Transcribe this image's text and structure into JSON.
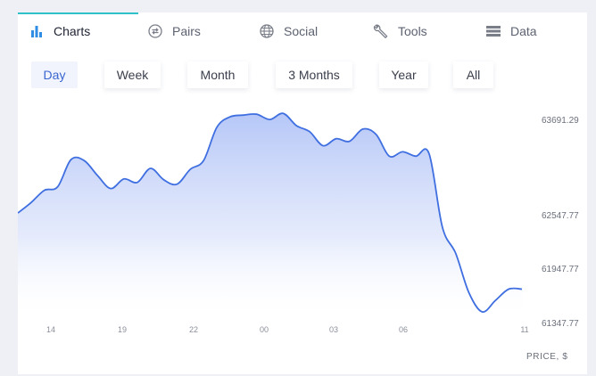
{
  "tabs": [
    {
      "label": "Charts",
      "icon": "bar-chart-icon",
      "active": true
    },
    {
      "label": "Pairs",
      "icon": "swap-icon",
      "active": false
    },
    {
      "label": "Social",
      "icon": "globe-icon",
      "active": false
    },
    {
      "label": "Tools",
      "icon": "wrench-icon",
      "active": false
    },
    {
      "label": "Data",
      "icon": "list-icon",
      "active": false
    }
  ],
  "ranges": [
    {
      "label": "Day",
      "active": true
    },
    {
      "label": "Week",
      "active": false
    },
    {
      "label": "Month",
      "active": false
    },
    {
      "label": "3 Months",
      "active": false
    },
    {
      "label": "Year",
      "active": false
    },
    {
      "label": "All",
      "active": false
    }
  ],
  "colors": {
    "accent": "#3a66d0",
    "line": "#3f6fe0",
    "tab_underline": "#2fc1c9"
  },
  "chart_data": {
    "type": "area",
    "ylabel": "PRICE, $",
    "y_ticks": [
      63691.29,
      62547.77,
      61947.77,
      61347.77
    ],
    "y_tick_labels": [
      "63691.29",
      "62547.77",
      "61947.77",
      "61347.77"
    ],
    "x_ticks": [
      "14",
      "19",
      "22",
      "00",
      "03",
      "06",
      "11"
    ],
    "ylim": [
      61347.77,
      63691.29
    ],
    "series": [
      {
        "values": [
          62600,
          62720,
          62860,
          62900,
          63210,
          63200,
          63030,
          62880,
          62990,
          62950,
          63110,
          62980,
          62930,
          63100,
          63200,
          63580,
          63700,
          63720,
          63730,
          63670,
          63740,
          63600,
          63530,
          63370,
          63450,
          63420,
          63560,
          63500,
          63250,
          63300,
          63250,
          63280,
          62440,
          62140,
          61690,
          61470,
          61600,
          61730,
          61730
        ]
      }
    ]
  }
}
